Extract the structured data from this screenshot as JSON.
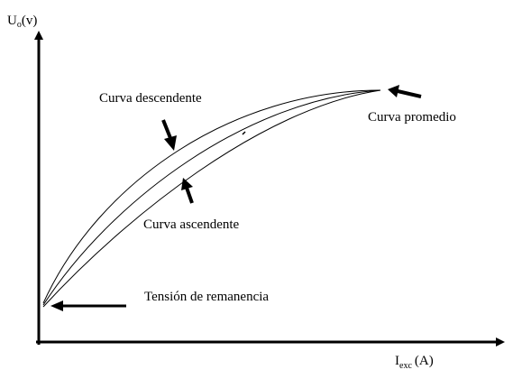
{
  "chart_data": {
    "type": "line",
    "title": "",
    "y_axis": {
      "label_main": "U",
      "label_sub": "o",
      "label_unit": "(v)"
    },
    "x_axis": {
      "label_main": "I",
      "label_sub": "exc",
      "label_unit": "(A)"
    },
    "series": [
      {
        "name": "Curva descendente",
        "curve_key": "descending"
      },
      {
        "name": "Curva promedio",
        "curve_key": "average"
      },
      {
        "name": "Curva ascendente",
        "curve_key": "ascending"
      }
    ],
    "annotations": {
      "descendente": "Curva descendente",
      "promedio": "Curva promedio",
      "ascendente": "Curva ascendente",
      "remanencia": "Tensión de remanencia"
    },
    "grid": false,
    "axis_ticks": false
  }
}
